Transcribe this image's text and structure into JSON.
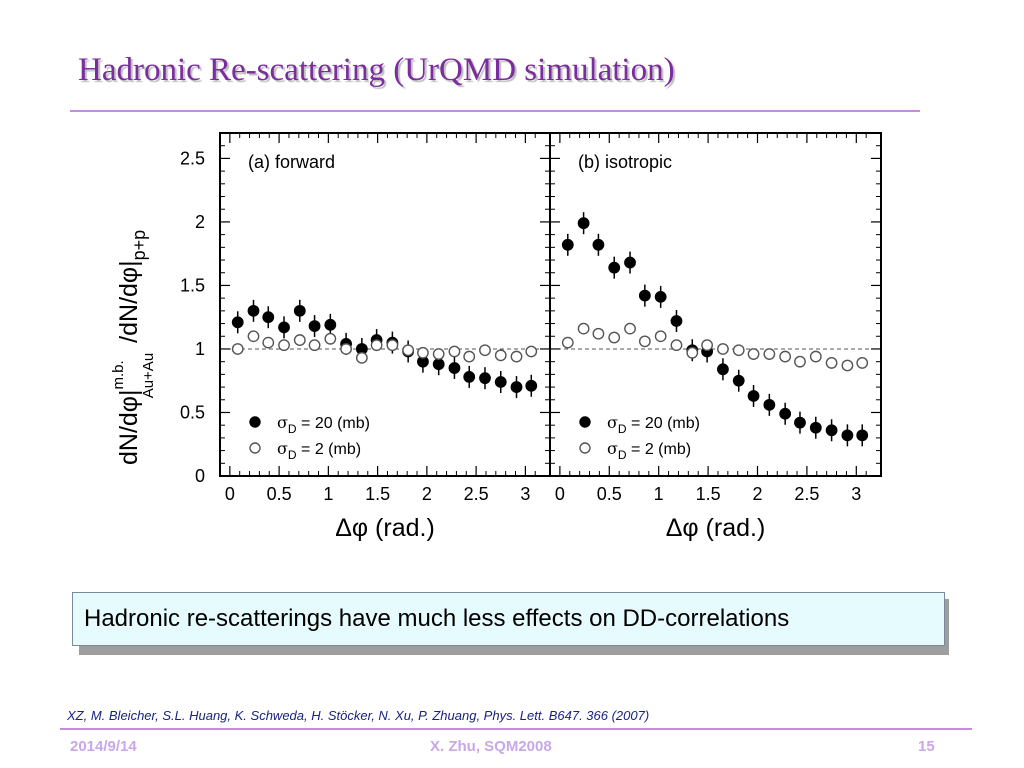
{
  "slide": {
    "title": "Hadronic Re-scattering (UrQMD simulation)",
    "callout": "Hadronic re-scatterings have much less effects on DD-correlations",
    "reference": "XZ, M. Bleicher, S.L. Huang, K. Schweda, H. Stöcker, N. Xu, P. Zhuang, Phys. Lett. B647. 366 (2007)",
    "footer": {
      "date": "2014/9/14",
      "center": "X. Zhu, SQM2008",
      "page": "15"
    }
  },
  "colors": {
    "title": "#7b2d9e",
    "rule": "#c58be0",
    "callout_bg": "#e6fbfd",
    "reference": "#1a237e",
    "footer": "#c9a7e8"
  },
  "chart_data": {
    "type": "scatter",
    "ylabel_main": "dN/dφ|",
    "ylabel_sup": "m.b.",
    "ylabel_sub": "Au+Au",
    "ylabel_tail": "/dN/dφ|",
    "ylabel_tail_sub": "p+p",
    "xlabel": "Δφ (rad.)",
    "xlim": [
      -0.1,
      3.25
    ],
    "ylim": [
      0,
      2.7
    ],
    "xticks": [
      0,
      0.5,
      1,
      1.5,
      2,
      2.5,
      3
    ],
    "yticks": [
      0,
      0.5,
      1,
      1.5,
      2,
      2.5
    ],
    "reference_line": 1,
    "x": [
      0.08,
      0.24,
      0.39,
      0.55,
      0.71,
      0.86,
      1.02,
      1.18,
      1.34,
      1.49,
      1.65,
      1.81,
      1.96,
      2.12,
      2.28,
      2.43,
      2.59,
      2.75,
      2.91,
      3.06
    ],
    "panels": [
      {
        "label": "(a) forward",
        "series": [
          {
            "name": "σ_D = 20 (mb)",
            "marker": "filled",
            "values": [
              1.21,
              1.3,
              1.25,
              1.17,
              1.3,
              1.18,
              1.19,
              1.04,
              1.0,
              1.07,
              1.05,
              0.98,
              0.9,
              0.88,
              0.85,
              0.78,
              0.77,
              0.74,
              0.7,
              0.71
            ]
          },
          {
            "name": "σ_D = 2 (mb)",
            "marker": "open",
            "values": [
              1.0,
              1.1,
              1.05,
              1.03,
              1.07,
              1.03,
              1.08,
              1.0,
              0.93,
              1.03,
              1.03,
              0.99,
              0.97,
              0.96,
              0.98,
              0.94,
              0.99,
              0.95,
              0.94,
              0.98
            ]
          }
        ]
      },
      {
        "label": "(b) isotropic",
        "series": [
          {
            "name": "σ_D = 20 (mb)",
            "marker": "filled",
            "values": [
              1.82,
              1.99,
              1.82,
              1.64,
              1.68,
              1.42,
              1.41,
              1.22,
              0.99,
              0.98,
              0.84,
              0.75,
              0.63,
              0.56,
              0.49,
              0.42,
              0.38,
              0.36,
              0.32,
              0.32
            ]
          },
          {
            "name": "σ_D = 2 (mb)",
            "marker": "open",
            "values": [
              1.05,
              1.16,
              1.12,
              1.09,
              1.16,
              1.06,
              1.1,
              1.03,
              0.97,
              1.03,
              1.0,
              0.99,
              0.96,
              0.96,
              0.94,
              0.9,
              0.94,
              0.89,
              0.87,
              0.89
            ]
          }
        ]
      }
    ],
    "legend": [
      {
        "marker": "filled",
        "sigma": "σ",
        "sub": "D",
        "text": " = 20 (mb)"
      },
      {
        "marker": "open",
        "sigma": "σ",
        "sub": "D",
        "text": " = 2 (mb)"
      }
    ]
  }
}
